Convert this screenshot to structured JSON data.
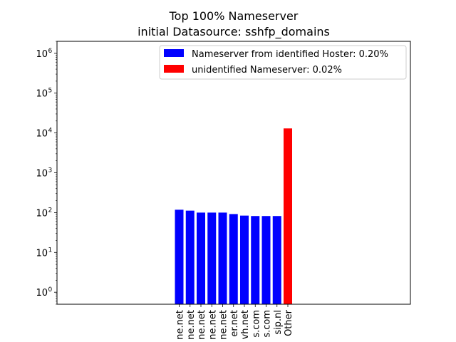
{
  "chart_data": {
    "type": "bar",
    "title_line1": "Top 100% Nameserver",
    "title_line2": "initial Datasource: sshfp_domains",
    "xlabel": "",
    "ylabel": "",
    "yscale": "log",
    "ylim": [
      0.5,
      2000000
    ],
    "y_ticks": [
      {
        "base": "10",
        "exp": "0",
        "value": 1
      },
      {
        "base": "10",
        "exp": "1",
        "value": 10
      },
      {
        "base": "10",
        "exp": "2",
        "value": 100
      },
      {
        "base": "10",
        "exp": "3",
        "value": 1000
      },
      {
        "base": "10",
        "exp": "4",
        "value": 10000
      },
      {
        "base": "10",
        "exp": "5",
        "value": 100000
      },
      {
        "base": "10",
        "exp": "6",
        "value": 1000000
      }
    ],
    "categories": [
      "ne.net",
      "ne.net",
      "ne.net",
      "ne.net",
      "ne.net",
      "er.net",
      "vh.net",
      "s.com",
      "s.com",
      "sip.nl",
      "Other"
    ],
    "values": [
      118,
      112,
      100,
      100,
      100,
      92,
      84,
      82,
      82,
      82,
      13000
    ],
    "series_index": [
      0,
      0,
      0,
      0,
      0,
      0,
      0,
      0,
      0,
      0,
      1
    ],
    "series": [
      {
        "name": "Nameserver from identified Hoster: 0.20%",
        "color": "#0000ff"
      },
      {
        "name": "unidentified Nameserver: 0.02%",
        "color": "#ff0000"
      }
    ],
    "legend": {
      "location": "upper right"
    },
    "grid": false
  }
}
